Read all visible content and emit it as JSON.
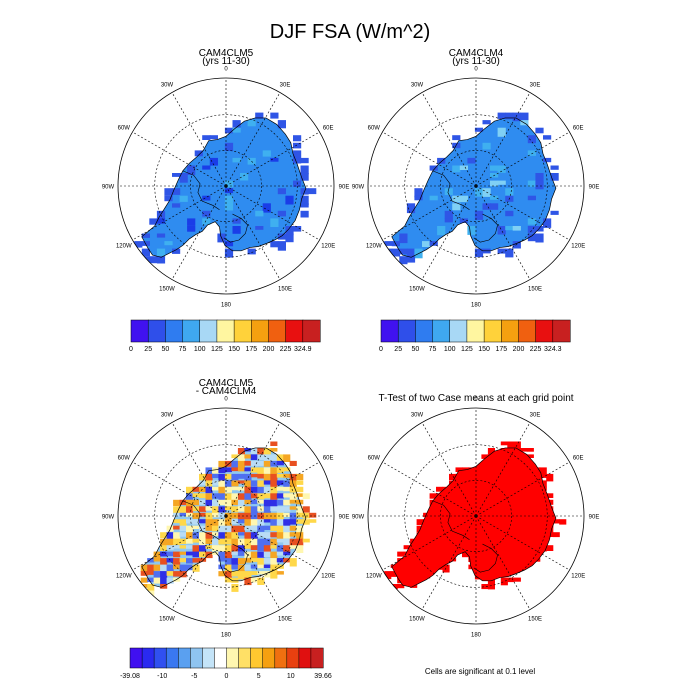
{
  "figure_title": "DJF FSA (W/m^2)",
  "panels": [
    {
      "title": "CAM4CLM5",
      "subtitle": "(yrs 11-30)",
      "kind": "field",
      "palette": "abs",
      "base_color": "#2f8cf0",
      "patch_colors": [
        "#2f55e6",
        "#1a3de8",
        "#3fb0f0"
      ],
      "coast_patch_color": "#2f55e6"
    },
    {
      "title": "CAM4CLM4",
      "subtitle": "(yrs 11-30)",
      "kind": "field",
      "palette": "abs",
      "base_color": "#2f8cf0",
      "patch_colors": [
        "#3fb0f0",
        "#2f55e6",
        "#7fd0f5"
      ],
      "coast_patch_color": "#2f55e6"
    },
    {
      "title": "CAM4CLM5",
      "subtitle": "- CAM4CLM4",
      "kind": "diff",
      "palette": "diff",
      "base_color": "#8fc8f0",
      "patch_colors": [
        "#2f2fe6",
        "#4f6ff0",
        "#b8dcf5",
        "#fff7b0",
        "#ffd84a",
        "#f5a623",
        "#e85020"
      ],
      "coast_patch_color": "#ffd84a"
    },
    {
      "title": "T-Test of two Case means at each grid point",
      "subtitle": "",
      "kind": "ttest",
      "palette": "none",
      "base_color": "#ff0000",
      "patch_colors": [
        "#ff0000"
      ],
      "coast_patch_color": "#ff0000"
    }
  ],
  "lon_labels": [
    "0",
    "30E",
    "60E",
    "90E",
    "120E",
    "150E",
    "180",
    "150W",
    "120W",
    "90W",
    "60W",
    "30W"
  ],
  "colorbars": [
    {
      "colors": [
        "#4012f0",
        "#2f4fea",
        "#2f7cf0",
        "#3fa8f0",
        "#a8d8f5",
        "#fff6a0",
        "#ffd23a",
        "#f5a010",
        "#f06010",
        "#e81010",
        "#c82020"
      ],
      "labels": [
        "0",
        "25",
        "50",
        "75",
        "100",
        "125",
        "150",
        "175",
        "200",
        "225",
        "324.9"
      ]
    },
    {
      "colors": [
        "#4012f0",
        "#2f4fea",
        "#2f7cf0",
        "#3fa8f0",
        "#a8d8f5",
        "#fff6a0",
        "#ffd23a",
        "#f5a010",
        "#f06010",
        "#e81010",
        "#c82020"
      ],
      "labels": [
        "0",
        "25",
        "50",
        "75",
        "100",
        "125",
        "150",
        "175",
        "200",
        "225",
        "324.3"
      ]
    },
    {
      "colors": [
        "#4010f0",
        "#2a2af0",
        "#3050f0",
        "#3a78f0",
        "#5aa0f0",
        "#8fc4f0",
        "#c4e4f8",
        "#ffffff",
        "#fff7b0",
        "#ffe066",
        "#ffc830",
        "#f5a010",
        "#f07010",
        "#e84010",
        "#e01010",
        "#c82020"
      ],
      "labels": [
        "-39.08",
        "-10",
        "-5",
        "0",
        "5",
        "10",
        "39.66"
      ]
    }
  ],
  "chart_data": [
    {
      "type": "heatmap",
      "title": "CAM4CLM5",
      "subtitle": "(yrs 11-30)",
      "projection": "south-polar-stereographic",
      "variable": "FSA",
      "units": "W/m^2",
      "colorbar_levels": [
        0,
        25,
        50,
        75,
        100,
        125,
        150,
        175,
        200,
        225,
        324.9
      ],
      "dominant_range": [
        50,
        75
      ]
    },
    {
      "type": "heatmap",
      "title": "CAM4CLM4",
      "subtitle": "(yrs 11-30)",
      "projection": "south-polar-stereographic",
      "variable": "FSA",
      "units": "W/m^2",
      "colorbar_levels": [
        0,
        25,
        50,
        75,
        100,
        125,
        150,
        175,
        200,
        225,
        324.3
      ],
      "dominant_range": [
        50,
        75
      ]
    },
    {
      "type": "heatmap",
      "title": "CAM4CLM5 - CAM4CLM4",
      "projection": "south-polar-stereographic",
      "variable": "FSA difference",
      "units": "W/m^2",
      "colorbar_min": -39.08,
      "colorbar_max": 39.66,
      "colorbar_ticks": [
        -10,
        -5,
        0,
        5,
        10
      ]
    },
    {
      "type": "heatmap",
      "title": "T-Test of two Case means at each grid point",
      "projection": "south-polar-stereographic",
      "significance_level": 0.1,
      "note": "Cells are significant at 0.1 level"
    }
  ],
  "significance_note": "Cells are significant at 0.1 level"
}
